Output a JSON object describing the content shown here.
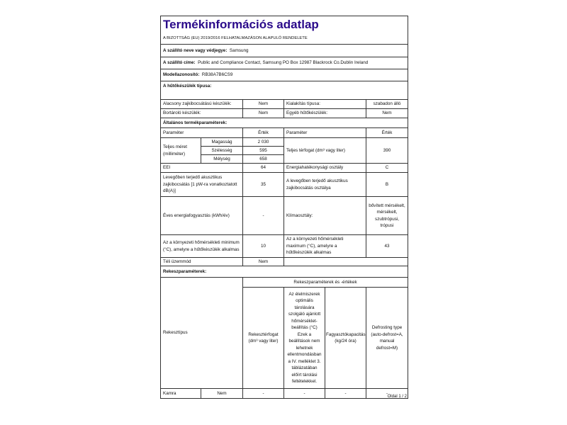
{
  "title": "Termékinformációs adatlap",
  "subtitle": "A BIZOTTSÁG (EU) 2019/2016 FELHATALMAZÁSON ALAPULÓ RENDELETE",
  "supplier": {
    "label": "A szállító neve vagy védjegye:",
    "value": "Samsung"
  },
  "address": {
    "label": "A szállító címe:",
    "value": "Public and Compliance Contact, Samsung PO Box 12987 Blackrock Co.Dublin Ireland"
  },
  "model": {
    "label": "Modellazonosító:",
    "value": "RB38A7B6CS9"
  },
  "type_header": "A hűtőkészülék típusa:",
  "type_rows": [
    {
      "p1": "Alacsony zajkibocsátású készülék:",
      "v1": "Nem",
      "p2": "Kialakítás típusa:",
      "v2": "szabadon álló"
    },
    {
      "p1": "Bortároló készülék:",
      "v1": "Nem",
      "p2": "Egyéb hűtőkészülék:",
      "v2": "Nem"
    }
  ],
  "general_header": "Általános termékparaméterek:",
  "col_headers": {
    "param": "Paraméter",
    "value": "Érték"
  },
  "dimensions": {
    "label": "Teljes méret (milliméter)",
    "height_label": "Magasság",
    "height": "2 030",
    "width_label": "Szélesség",
    "width": "595",
    "depth_label": "Mélység",
    "depth": "658"
  },
  "volume": {
    "label": "Teljes térfogat (dm³ vagy liter)",
    "value": "390"
  },
  "eei": {
    "label": "EEI",
    "value": "64",
    "class_label": "Energiahatékonysági osztály",
    "class_value": "C"
  },
  "noise": {
    "label": "Levegőben terjedő akusztikus zajkibocsátás [1 pW-ra vonatkoztatott dB(A)]",
    "value": "35",
    "class_label": "A levegőben terjedő akusztikus zajkibocsátás osztálya",
    "class_value": "B"
  },
  "energy": {
    "label": "Éves energiafogyasztás (kWh/év)",
    "value": "-",
    "climate_label": "Klímaosztály:",
    "climate_value": "bővített mérsékelt, mérsékelt, szubtrópusi, trópusi"
  },
  "temp": {
    "min_label": "Az a környezeti hőmérsékleti minimum (°C), amelyre a hűtőkészülék alkalmas",
    "min": "10",
    "max_label": "Az a környezeti hőmérsékleti maximum (°C), amelyre a hűtőkészülék alkalmas",
    "max": "43"
  },
  "winter": {
    "label": "Téli üzemmód",
    "value": "Nem"
  },
  "compartment_header": "Rekeszparaméterek:",
  "compartment": {
    "type_label": "Rekesztípus",
    "group_label": "Rekeszparaméterek és -értékek",
    "h_volume": "Rekesztérfogat (dm³ vagy liter)",
    "h_temp": "Az élelmiszerek optimális tárolására szolgáló ajánlott hőmérséklet-beállítás (°C) Ezek a beállítások nem lehetnek ellentmondásban a IV. melléklet 3. táblázatában előírt tárolási feltételekkel.",
    "h_freeze": "Fagyasztókapacitás (kg/24 óra)",
    "h_defrost": "Defrosting type (auto-defrost=A, manual defrost=M)",
    "rows": [
      {
        "name": "Kamra",
        "present": "Nem",
        "volume": "-",
        "temp": "-",
        "freeze": "-",
        "defrost": "-"
      }
    ]
  },
  "footer": "Oldal 1 / 2",
  "colors": {
    "title": "#2a0a8a"
  }
}
